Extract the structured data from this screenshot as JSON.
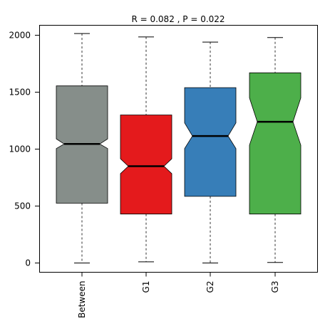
{
  "chart_data": {
    "type": "boxplot",
    "title": "R =  0.082 ,  P =  0.022",
    "xlabel": "",
    "ylabel": "",
    "ylim": [
      -75,
      2100
    ],
    "yticks": [
      0,
      500,
      1000,
      1500,
      2000
    ],
    "categories": [
      "Between",
      "G1",
      "G2",
      "G3"
    ],
    "grid": false,
    "notched": true,
    "boxes": [
      {
        "name": "Between",
        "color": "#868E8A",
        "whisker_low": 0,
        "q1": 525,
        "median": 1045,
        "q3": 1555,
        "whisker_high": 2015,
        "notch_low": 1005,
        "notch_high": 1090
      },
      {
        "name": "G1",
        "color": "#E41A1C",
        "whisker_low": 10,
        "q1": 430,
        "median": 850,
        "q3": 1300,
        "whisker_high": 1985,
        "notch_low": 785,
        "notch_high": 915
      },
      {
        "name": "G2",
        "color": "#377EB8",
        "whisker_low": 0,
        "q1": 585,
        "median": 1115,
        "q3": 1540,
        "whisker_high": 1940,
        "notch_low": 1005,
        "notch_high": 1230
      },
      {
        "name": "G3",
        "color": "#4DAF4A",
        "whisker_low": 5,
        "q1": 430,
        "median": 1240,
        "q3": 1670,
        "whisker_high": 1980,
        "notch_low": 1035,
        "notch_high": 1450
      }
    ]
  }
}
